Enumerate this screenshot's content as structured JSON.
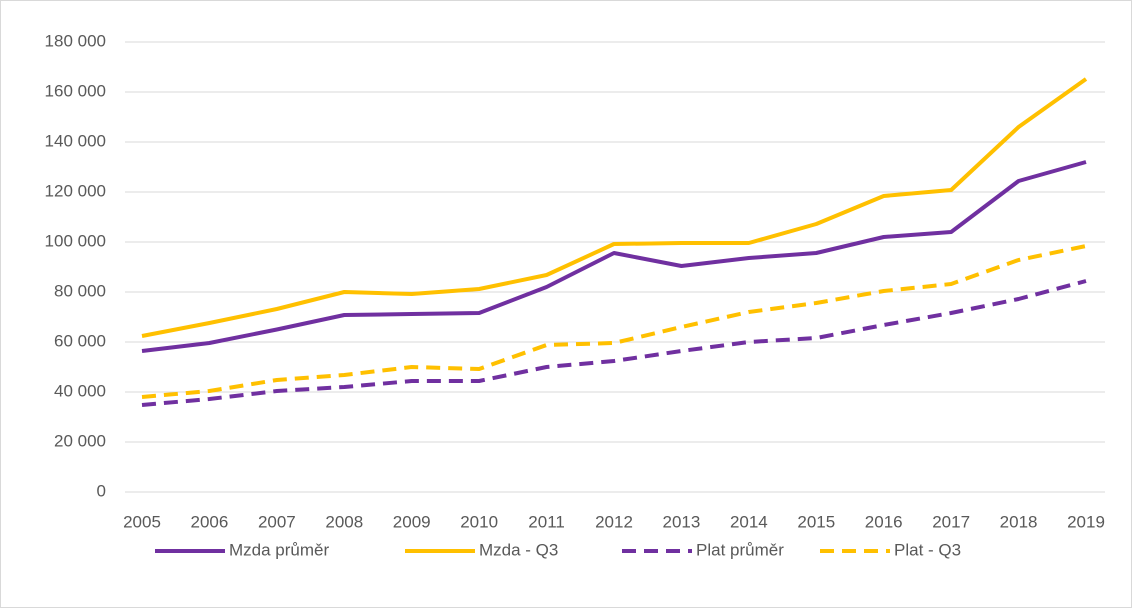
{
  "chart_data": {
    "type": "line",
    "categories": [
      "2005",
      "2006",
      "2007",
      "2008",
      "2009",
      "2010",
      "2011",
      "2012",
      "2013",
      "2014",
      "2015",
      "2016",
      "2017",
      "2018",
      "2019"
    ],
    "series": [
      {
        "name": "Mzda průměr",
        "color": "#7030a0",
        "dashed": false,
        "values": [
          56400,
          59600,
          65000,
          70800,
          71200,
          71600,
          82000,
          95600,
          90400,
          93600,
          95600,
          102000,
          104000,
          124400,
          132000
        ]
      },
      {
        "name": "Mzda - Q3",
        "color": "#ffc000",
        "dashed": false,
        "values": [
          62400,
          67600,
          73200,
          80000,
          79200,
          81200,
          86800,
          99200,
          99600,
          99600,
          107200,
          118400,
          120800,
          146000,
          165200
        ]
      },
      {
        "name": "Plat průměr",
        "color": "#7030a0",
        "dashed": true,
        "values": [
          34800,
          37200,
          40400,
          42000,
          44400,
          44400,
          50000,
          52400,
          56400,
          60000,
          61600,
          66800,
          71600,
          77200,
          84400
        ]
      },
      {
        "name": "Plat - Q3",
        "color": "#ffc000",
        "dashed": true,
        "values": [
          38000,
          40400,
          44800,
          46800,
          50000,
          49200,
          58800,
          59600,
          66000,
          72000,
          75600,
          80400,
          83200,
          92800,
          98400
        ]
      }
    ],
    "ylim": [
      0,
      180000
    ],
    "yticks": [
      0,
      {
        "value": 20000,
        "label": "20 000"
      },
      {
        "value": 40000,
        "label": "40 000"
      },
      {
        "value": 60000,
        "label": "60 000"
      },
      {
        "value": 80000,
        "label": "80 000"
      },
      {
        "value": 100000,
        "label": "100 000"
      },
      {
        "value": 120000,
        "label": "120 000"
      },
      {
        "value": 140000,
        "label": "140 000"
      },
      {
        "value": 160000,
        "label": "160 000"
      },
      {
        "value": 180000,
        "label": "180 000"
      }
    ],
    "grid": true,
    "legend": "bottom"
  }
}
